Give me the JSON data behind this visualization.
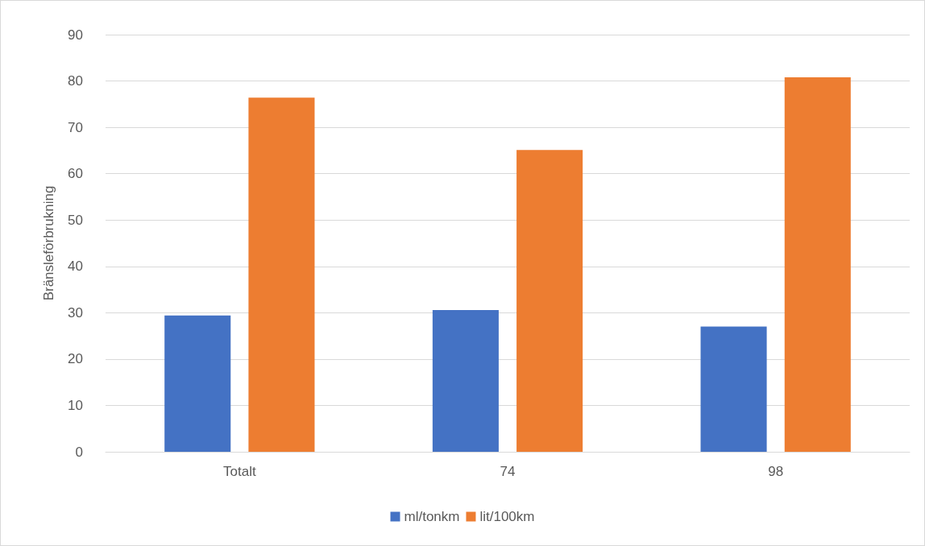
{
  "chart_data": {
    "type": "bar",
    "ylabel": "Bränsleförbrukning",
    "categories": [
      "Totalt",
      "74",
      "98"
    ],
    "series": [
      {
        "name": "ml/tonkm",
        "color": "#4472c4",
        "values": [
          29.4,
          30.6,
          27.0
        ]
      },
      {
        "name": "lit/100km",
        "color": "#ed7d31",
        "values": [
          76.4,
          65.1,
          80.8
        ]
      }
    ],
    "ylim": [
      0,
      90
    ],
    "yticks": [
      0,
      10,
      20,
      30,
      40,
      50,
      60,
      70,
      80,
      90
    ],
    "grid": "y",
    "legend": "bottom"
  }
}
